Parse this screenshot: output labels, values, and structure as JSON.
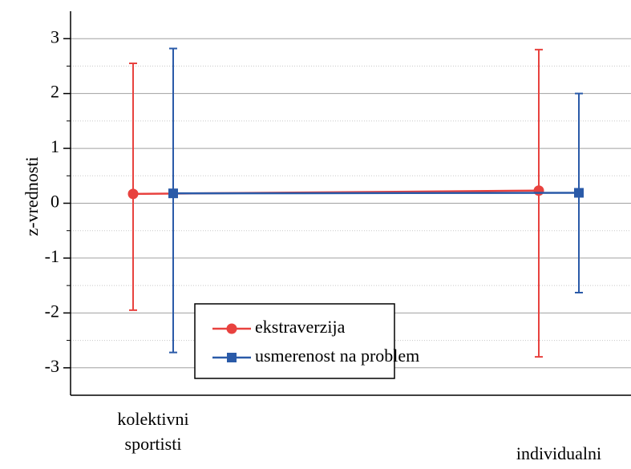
{
  "chart_data": {
    "type": "errorbar-line",
    "y_label": "z-vrednosti",
    "categories": [
      "kolektivni sportisti",
      "individualni sportisti"
    ],
    "series": [
      {
        "name": "ekstraverzija",
        "color": "#e8423f",
        "marker": "circle",
        "values": [
          0.17,
          0.23
        ],
        "upper": [
          2.55,
          2.8
        ],
        "lower": [
          -1.95,
          -2.8
        ]
      },
      {
        "name": "usmerenost na problem",
        "color": "#2a5aa8",
        "marker": "square",
        "values": [
          0.18,
          0.19
        ],
        "upper": [
          2.82,
          2.0
        ],
        "lower": [
          -2.72,
          -1.63
        ]
      }
    ],
    "ylim": [
      -3.5,
      3.5
    ],
    "yticks": [
      -3,
      -2,
      -1,
      0,
      1,
      2,
      3
    ],
    "yticks_minor": [
      -2.5,
      -1.5,
      -0.5,
      0.5,
      1.5,
      2.5
    ],
    "grid": true
  }
}
